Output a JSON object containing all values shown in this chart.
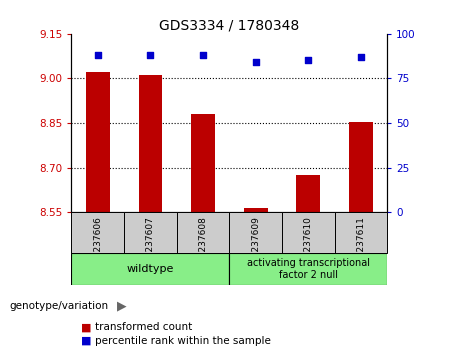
{
  "title": "GDS3334 / 1780348",
  "samples": [
    "GSM237606",
    "GSM237607",
    "GSM237608",
    "GSM237609",
    "GSM237610",
    "GSM237611"
  ],
  "bar_values": [
    9.02,
    9.01,
    8.88,
    8.565,
    8.675,
    8.855
  ],
  "percentile_values": [
    88,
    88,
    88,
    84,
    85,
    87
  ],
  "ylim_left": [
    8.55,
    9.15
  ],
  "ylim_right": [
    0,
    100
  ],
  "yticks_left": [
    8.55,
    8.7,
    8.85,
    9.0,
    9.15
  ],
  "yticks_right": [
    0,
    25,
    50,
    75,
    100
  ],
  "bar_color": "#bb0000",
  "dot_color": "#0000cc",
  "group1_label": "wildtype",
  "group2_label": "activating transcriptional\nfactor 2 null",
  "group1_indices": [
    0,
    1,
    2
  ],
  "group2_indices": [
    3,
    4,
    5
  ],
  "group_bg_color": "#88ee88",
  "sample_bg_color": "#cccccc",
  "legend_bar_label": "transformed count",
  "legend_dot_label": "percentile rank within the sample",
  "genotype_label": "genotype/variation",
  "left_tick_color": "#cc0000",
  "right_tick_color": "#0000cc"
}
